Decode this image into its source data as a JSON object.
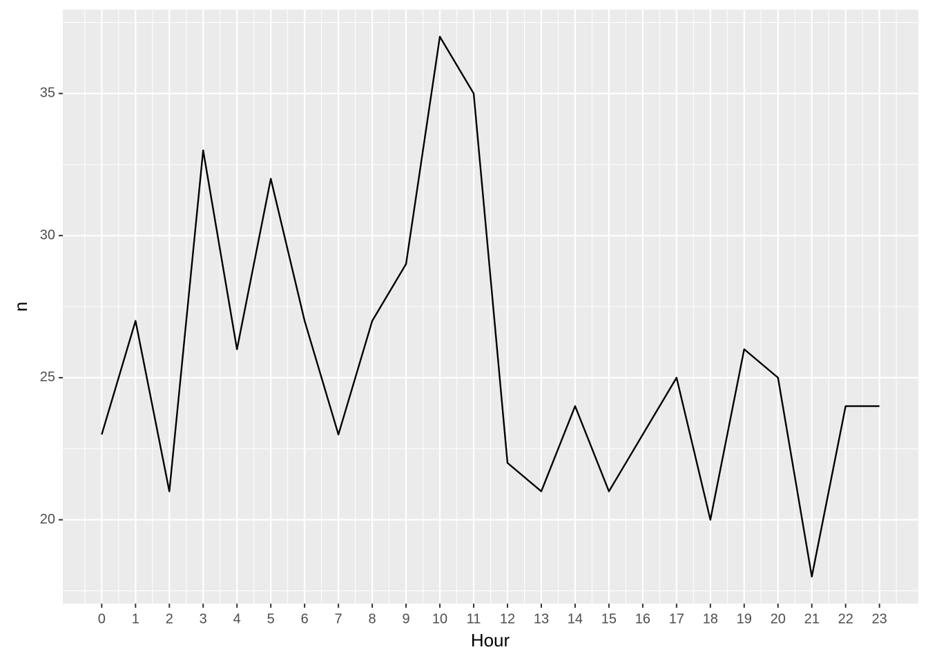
{
  "chart_data": {
    "type": "line",
    "x": [
      0,
      1,
      2,
      3,
      4,
      5,
      6,
      7,
      8,
      9,
      10,
      11,
      12,
      13,
      14,
      15,
      16,
      17,
      18,
      19,
      20,
      21,
      22,
      23
    ],
    "values": [
      23,
      27,
      21,
      33,
      26,
      32,
      27,
      23,
      27,
      29,
      37,
      35,
      22,
      21,
      24,
      21,
      23,
      25,
      20,
      26,
      25,
      18,
      24,
      24
    ],
    "color": "#000000",
    "x_label": "Hour",
    "y_label": "n",
    "xlim": [
      -1.15,
      24.15
    ],
    "xticks": [
      0,
      1,
      2,
      3,
      4,
      5,
      6,
      7,
      8,
      9,
      10,
      11,
      12,
      13,
      14,
      15,
      16,
      17,
      18,
      19,
      20,
      21,
      22,
      23
    ],
    "ylim": [
      17.05,
      37.95
    ],
    "yticks": [
      20,
      25,
      30,
      35
    ],
    "grid": true
  }
}
